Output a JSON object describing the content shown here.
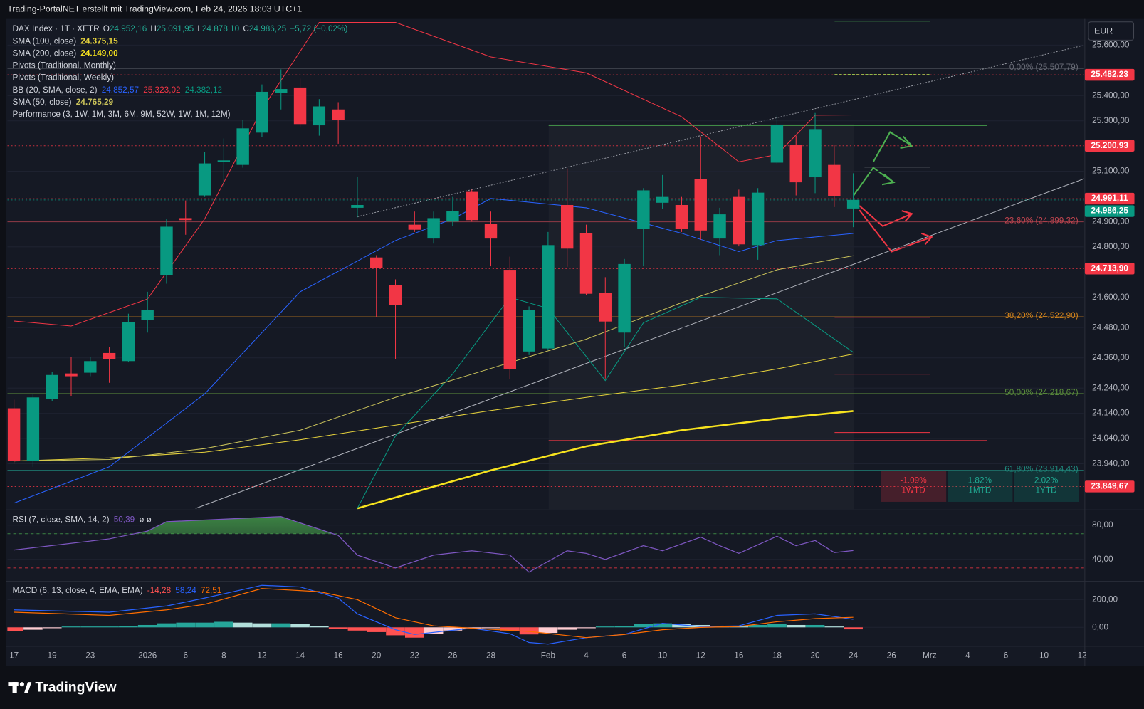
{
  "header": {
    "caption": "Trading-PortalNET erstellt mit TradingView.com, Feb 24, 2026 18:03 UTC+1",
    "currency": "EUR",
    "brand": "TradingView"
  },
  "chart_data": [
    {
      "type": "candlestick",
      "title": "DAX Index · 1T · XETR",
      "categories": [
        "17",
        null,
        "19",
        null,
        "23",
        null,
        null,
        "2026",
        null,
        "6",
        null,
        "8",
        null,
        "12",
        null,
        "14",
        null,
        "16",
        null,
        "20",
        null,
        "22",
        null,
        "26",
        null,
        "28",
        null,
        null,
        "Feb",
        null,
        "4",
        null,
        "6",
        null,
        "10",
        null,
        "12",
        null,
        "16",
        null,
        "18",
        null,
        "20",
        null,
        "24",
        null,
        "26",
        null,
        "Mrz",
        null,
        "4",
        null,
        "6",
        null,
        "10",
        null,
        "12"
      ],
      "open": [
        24160,
        23951,
        24197,
        24298,
        24301,
        24379,
        24347,
        24509,
        24689,
        24914,
        25004,
        25137,
        25125,
        25253,
        25412,
        25432,
        25282,
        25345,
        24955,
        24758,
        24648,
        24888,
        24833,
        24900,
        25018,
        24891,
        24709,
        24385,
        24397,
        24966,
        24854,
        24616,
        24460,
        24871,
        24975,
        24966,
        25070,
        24833,
        24998,
        24807,
        25134,
        25206,
        25076,
        25125,
        24952.16,
        null,
        null,
        null,
        null,
        null,
        null,
        null,
        null,
        null,
        null,
        null,
        null
      ],
      "high": [
        24194,
        24217,
        24304,
        24362,
        24362,
        24402,
        24535,
        24622,
        24911,
        24984,
        25177,
        25230,
        25302,
        25444,
        25504,
        25467,
        25386,
        25374,
        25079,
        24767,
        24671,
        24940,
        24940,
        24998,
        25027,
        24940,
        24761,
        24564,
        24859,
        25111,
        24888,
        24680,
        24752,
        25033,
        25085,
        24998,
        25238,
        24955,
        25027,
        25033,
        25322,
        25241,
        25331,
        25203,
        25091.95,
        null,
        null,
        null,
        null,
        null,
        null,
        null,
        null,
        null,
        null,
        null,
        null
      ],
      "low": [
        23940,
        23928,
        24188,
        24209,
        24287,
        24261,
        24342,
        24460,
        24654,
        24848,
        24998,
        25041,
        25114,
        25235,
        25345,
        25273,
        25241,
        25209,
        24917,
        24521,
        24356,
        24859,
        24813,
        24882,
        24900,
        24723,
        24275,
        24371,
        24391,
        24721,
        24608,
        24278,
        24402,
        24723,
        24952,
        24859,
        24828,
        24767,
        24802,
        24749,
        25128,
        25004,
        25013,
        24958,
        24878.1,
        null,
        null,
        null,
        null,
        null,
        null,
        null,
        null,
        null,
        null,
        null,
        null
      ],
      "close": [
        23951,
        24203,
        24292,
        24287,
        24347,
        24356,
        24501,
        24550,
        24880,
        24906,
        25131,
        25143,
        25270,
        25415,
        25426,
        25287,
        25357,
        25302,
        24966,
        24715,
        24570,
        24868,
        24914,
        24943,
        24906,
        24833,
        24316,
        24550,
        24807,
        24793,
        24614,
        24504,
        24732,
        25024,
        24998,
        24871,
        24865,
        24929,
        24810,
        25015,
        25284,
        25056,
        25267,
        25001,
        24986.25,
        null,
        null,
        null,
        null,
        null,
        null,
        null,
        null,
        null,
        null,
        null,
        null
      ],
      "colors": {
        "up": "#089981",
        "down": "#f23645"
      },
      "ohlc_legend": [
        {
          "key": "O",
          "value": 24952.16,
          "label": "24.952,16"
        },
        {
          "key": "H",
          "value": 25091.95,
          "label": "25.091,95"
        },
        {
          "key": "L",
          "value": 24878.1,
          "label": "24.878,10"
        },
        {
          "key": "C",
          "value": 24986.25,
          "label": "24.986,25"
        }
      ],
      "change": {
        "value": -5.72,
        "label": "−5,72 (−0,02%)"
      },
      "legend": [
        {
          "name": "SMA (100, close)",
          "lines": [
            {
              "color": "#e6d23c",
              "width": 1,
              "label": {
                "value": 24375.15,
                "label": "24.375,15"
              },
              "x": [
                0,
                5,
                10,
                15,
                20,
                25,
                30,
                35,
                40,
                44
              ],
              "values": [
                23951,
                23963,
                23986,
                24035,
                24093,
                24151,
                24203,
                24252,
                24316,
                24375
              ]
            }
          ]
        },
        {
          "name": "SMA (200, close)",
          "lines": [
            {
              "color": "#f7e31e",
              "width": 2.5,
              "label": {
                "value": 24149.0,
                "label": "24.149,00"
              },
              "x": [
                18,
                25,
                30,
                35,
                40,
                44
              ],
              "values": [
                23763,
                23914,
                24009,
                24073,
                24119,
                24149
              ]
            }
          ]
        },
        {
          "name": "Pivots (Traditional, Monthly)"
        },
        {
          "name": "Pivots (Traditional, Weekly)"
        },
        {
          "name": "BB (20, SMA, close, 2)",
          "lines": [
            {
              "color": "#2962ff",
              "width": 1,
              "label": {
                "value": 24852.57,
                "label": "24.852,57"
              },
              "x": [
                0,
                5,
                10,
                15,
                20,
                23,
                25,
                30,
                35,
                38,
                40,
                44
              ],
              "values": [
                23784,
                23928,
                24217,
                24622,
                24825,
                24911,
                24992,
                24955,
                24854,
                24781,
                24825,
                24853
              ]
            },
            {
              "color": "#f23645",
              "width": 1,
              "label": {
                "value": 25323.02,
                "label": "25.323,02"
              },
              "x": [
                0,
                3,
                7,
                10,
                13,
                16,
                20,
                25,
                30,
                35,
                38,
                40,
                42,
                44
              ],
              "values": [
                24506,
                24486,
                24593,
                24911,
                25345,
                25690,
                25690,
                25553,
                25490,
                25316,
                25137,
                25166,
                25322,
                25323
              ]
            },
            {
              "color": "#089981",
              "width": 1,
              "label": {
                "value": 24382.12,
                "label": "24.382,12"
              },
              "x": [
                18,
                20,
                23,
                26,
                28,
                31,
                33,
                36,
                40,
                44
              ],
              "values": [
                23763,
                24050,
                24296,
                24600,
                24556,
                24270,
                24499,
                24600,
                24594,
                24382
              ]
            }
          ]
        },
        {
          "name": "SMA (50, close)",
          "lines": [
            {
              "color": "#c9c25a",
              "width": 1,
              "label": {
                "value": 24765.29,
                "label": "24.765,29"
              },
              "x": [
                0,
                5,
                10,
                15,
                20,
                25,
                30,
                35,
                40,
                44
              ],
              "values": [
                23951,
                23957,
                24000,
                24073,
                24203,
                24318,
                24434,
                24579,
                24709,
                24765
              ]
            }
          ]
        },
        {
          "name": "Performance (3, 1W, 1M, 3M, 6M, 9M, 52W, 1W, 1M, 12M)"
        }
      ],
      "ylim": [
        23760,
        25698
      ],
      "yticks": [
        {
          "value": 25600,
          "label": "25.600,00"
        },
        {
          "value": 25400,
          "label": "25.400,00"
        },
        {
          "value": 25300,
          "label": "25.300,00"
        },
        {
          "value": 25100,
          "label": "25.100,00"
        },
        {
          "value": 24900,
          "label": "24.900,00"
        },
        {
          "value": 24800,
          "label": "24.800,00"
        },
        {
          "value": 24600,
          "label": "24.600,00"
        },
        {
          "value": 24480,
          "label": "24.480,00"
        },
        {
          "value": 24360,
          "label": "24.360,00"
        },
        {
          "value": 24240,
          "label": "24.240,00"
        },
        {
          "value": 24140,
          "label": "24.140,00"
        },
        {
          "value": 24040,
          "label": "24.040,00"
        },
        {
          "value": 23940,
          "label": "23.940,00"
        }
      ],
      "fib_levels": [
        {
          "value": 25507.79,
          "label": "0,00% (25.507,79)",
          "color": "#6a6d78"
        },
        {
          "value": 24899.32,
          "label": "23,60% (24.899,32)",
          "color": "#c2454f"
        },
        {
          "value": 24522.9,
          "label": "38,20% (24.522,90)",
          "color": "#d7861c"
        },
        {
          "value": 24218.67,
          "label": "50,00% (24.218,67)",
          "color": "#5c8f3c"
        },
        {
          "value": 23914.43,
          "label": "61,80% (23.914,43)",
          "color": "#1f8a7e"
        }
      ],
      "price_labels": [
        {
          "value": 25482.23,
          "label": "25.482,23",
          "color": "#f23645"
        },
        {
          "value": 25200.93,
          "label": "25.200,93",
          "color": "#f23645"
        },
        {
          "value": 24991.11,
          "label": "24.991,11",
          "color": "#f23645"
        },
        {
          "value": 24986.25,
          "label": "24.986,25",
          "color": "#089981"
        },
        {
          "value": 24713.9,
          "label": "24.713,90",
          "color": "#f23645"
        },
        {
          "value": 23849.67,
          "label": "23.849,67",
          "color": "#f23645"
        }
      ],
      "performance": [
        {
          "value": -1.09,
          "label": "-1.09%",
          "period": "1WTD"
        },
        {
          "value": 1.82,
          "label": "1.82%",
          "period": "1MTD"
        },
        {
          "value": 2.02,
          "label": "2.02%",
          "period": "1YTD"
        }
      ]
    },
    {
      "type": "line",
      "title": "RSI (7, close, SMA, 14, 2)",
      "value_label": {
        "value": 50.39,
        "label": "50,39"
      },
      "suffix": "ø  ø",
      "color": "#7e57c2",
      "x": [
        0,
        5,
        7,
        8,
        14,
        17,
        18,
        20,
        22,
        24,
        26,
        27,
        29,
        30,
        31,
        33,
        34,
        36,
        37,
        38,
        40,
        41,
        42,
        43,
        44
      ],
      "values": [
        51,
        64,
        73,
        84,
        90,
        68,
        45,
        30,
        45,
        50,
        45,
        25,
        50,
        47,
        40,
        56,
        50,
        66,
        56,
        47,
        67,
        56,
        62,
        48,
        50.39
      ],
      "bands": [
        {
          "value": 70,
          "color": "#4caf50"
        },
        {
          "value": 30,
          "color": "#f23645"
        }
      ],
      "ylim": [
        16,
        97
      ],
      "yticks": [
        {
          "value": 80,
          "label": "80,00"
        },
        {
          "value": 40,
          "label": "40,00"
        }
      ]
    },
    {
      "type": "macd",
      "title": "MACD (6, 13, close, 4, EMA, EMA)",
      "histogram": {
        "values": [
          -29,
          -17,
          -6,
          6,
          6,
          6,
          11,
          17,
          29,
          34,
          34,
          40,
          34,
          29,
          29,
          23,
          11,
          -11,
          -23,
          -34,
          -57,
          -74,
          -46,
          -23,
          -11,
          -6,
          -23,
          -51,
          -40,
          -17,
          -6,
          6,
          11,
          23,
          29,
          23,
          17,
          11,
          6,
          17,
          23,
          17,
          17,
          6,
          -14.28
        ],
        "label": {
          "value": -14.28,
          "label": "-14,28"
        },
        "colors": {
          "up_rising": "#26a69a",
          "up_falling": "#b2dfdb",
          "down_rising": "#ff5252",
          "down_falling": "#ffcdd2"
        }
      },
      "lines": [
        {
          "color": "#2962ff",
          "label": {
            "value": 58.24,
            "label": "58,24"
          },
          "x": [
            0,
            5,
            8,
            10,
            13,
            15,
            17,
            18,
            20,
            21,
            24,
            26,
            27,
            28,
            30,
            32,
            34,
            36,
            38,
            40,
            42,
            44
          ],
          "values": [
            126,
            109,
            154,
            211,
            303,
            291,
            211,
            97,
            -17,
            -51,
            -6,
            -46,
            -109,
            -120,
            -74,
            -51,
            29,
            6,
            11,
            86,
            97,
            58.24
          ]
        },
        {
          "color": "#ff6d00",
          "label": {
            "value": 72.51,
            "label": "72,51"
          },
          "x": [
            0,
            5,
            8,
            10,
            13,
            16,
            18,
            20,
            22,
            24,
            27,
            30,
            32,
            34,
            36,
            38,
            40,
            42,
            44
          ],
          "values": [
            109,
            86,
            126,
            166,
            280,
            257,
            200,
            69,
            11,
            -6,
            -29,
            -74,
            -51,
            -17,
            0,
            6,
            40,
            63,
            72.51
          ]
        }
      ],
      "ylim": [
        -131,
        326
      ],
      "yticks": [
        {
          "value": 200,
          "label": "200,00"
        },
        {
          "value": 0,
          "label": "0,00"
        }
      ]
    }
  ]
}
